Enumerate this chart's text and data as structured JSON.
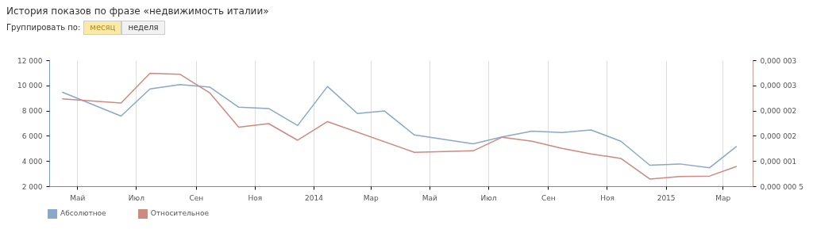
{
  "chart_data": {
    "type": "line",
    "title": "История показов по фразе «недвижимость италии»",
    "annotations": [
      "Группировать по:",
      "месяц",
      "неделя"
    ],
    "xlim": [
      "2013-04-02",
      "2015-04-01"
    ],
    "xticks": [
      {
        "value": "2013-05-01",
        "label": "Май"
      },
      {
        "value": "2013-07-01",
        "label": "Июл"
      },
      {
        "value": "2013-09-01",
        "label": "Сен"
      },
      {
        "value": "2013-11-01",
        "label": "Ноя"
      },
      {
        "value": "2014-01-01",
        "label": "2014"
      },
      {
        "value": "2014-03-01",
        "label": "Мар"
      },
      {
        "value": "2014-05-01",
        "label": "Май"
      },
      {
        "value": "2014-07-01",
        "label": "Июл"
      },
      {
        "value": "2014-09-01",
        "label": "Сен"
      },
      {
        "value": "2014-11-01",
        "label": "Ноя"
      },
      {
        "value": "2015-01-01",
        "label": "2015"
      },
      {
        "value": "2015-03-01",
        "label": "Мар"
      }
    ],
    "ylim": [
      2000,
      12000
    ],
    "yticks": [
      {
        "value": 2000,
        "label": "2 000"
      },
      {
        "value": 4000,
        "label": "4 000"
      },
      {
        "value": 6000,
        "label": "6 000"
      },
      {
        "value": 8000,
        "label": "8 000"
      },
      {
        "value": 10000,
        "label": "10 000"
      },
      {
        "value": 12000,
        "label": "12 000"
      }
    ],
    "y2lim": [
      5e-07,
      3e-06
    ],
    "y2ticks": [
      {
        "value": 5e-07,
        "label": "0,000 000 5"
      },
      {
        "value": 1e-06,
        "label": "0,000 001"
      },
      {
        "value": 1.5e-06,
        "label": "0,000 002"
      },
      {
        "value": 2e-06,
        "label": "0,000 002"
      },
      {
        "value": 2.5e-06,
        "label": "0,000 003"
      },
      {
        "value": 3e-06,
        "label": "0,000 003"
      }
    ],
    "grid": "x",
    "legend": "bottom",
    "marker": "none",
    "series": [
      {
        "name": "Абсолютное",
        "color": "#8aa8c8",
        "x": [
          "2013-04-15",
          "2013-06-15",
          "2013-07-15",
          "2013-08-15",
          "2013-09-15",
          "2013-10-15",
          "2013-11-15",
          "2013-12-15",
          "2014-01-15",
          "2014-02-15",
          "2014-03-15",
          "2014-04-15",
          "2014-06-15",
          "2014-07-15",
          "2014-08-15",
          "2014-09-15",
          "2014-10-15",
          "2014-11-15",
          "2014-12-15",
          "2015-01-15",
          "2015-02-15",
          "2015-03-15"
        ],
        "values": [
          9500,
          7600,
          9750,
          10100,
          9900,
          8300,
          8200,
          6850,
          9950,
          7800,
          8000,
          6100,
          5400,
          5950,
          6400,
          6300,
          6500,
          5600,
          3700,
          3800,
          3500,
          5200
        ]
      },
      {
        "name": "Относительное",
        "color": "#cc8a80",
        "axis": "y2",
        "x": [
          "2013-04-15",
          "2013-06-15",
          "2013-07-15",
          "2013-08-15",
          "2013-09-15",
          "2013-10-15",
          "2013-11-15",
          "2013-12-15",
          "2014-01-15",
          "2014-04-15",
          "2014-06-15",
          "2014-07-15",
          "2014-08-15",
          "2014-09-15",
          "2014-10-15",
          "2014-11-15",
          "2014-12-15",
          "2015-01-15",
          "2015-02-15",
          "2015-03-15"
        ],
        "values": [
          2.24e-06,
          2.16e-06,
          2.75e-06,
          2.73e-06,
          2.36e-06,
          1.68e-06,
          1.75e-06,
          1.42e-06,
          1.79e-06,
          1.18e-06,
          1.21e-06,
          1.48e-06,
          1.4e-06,
          1.26e-06,
          1.15e-06,
          1.06e-06,
          6.5e-07,
          7e-07,
          7.1e-07,
          9e-07
        ]
      }
    ]
  }
}
